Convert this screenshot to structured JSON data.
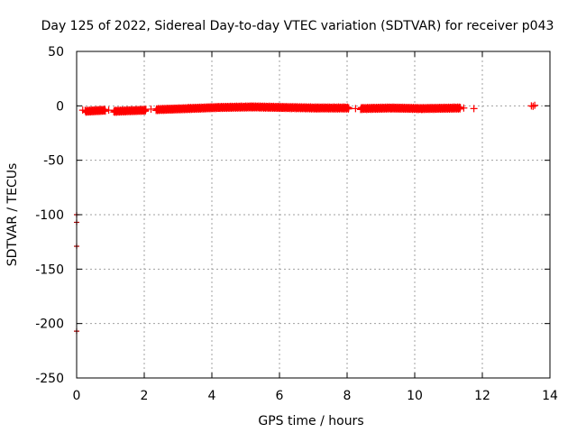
{
  "chart_data": {
    "type": "scatter",
    "title": "Day 125 of 2022, Sidereal Day-to-day VTEC variation (SDTVAR) for receiver p043",
    "xlabel": "GPS time / hours",
    "ylabel": "SDTVAR / TECUs",
    "xlim": [
      0,
      14
    ],
    "ylim": [
      -250,
      50
    ],
    "xticks": [
      0,
      2,
      4,
      6,
      8,
      10,
      12,
      14
    ],
    "yticks": [
      -250,
      -200,
      -150,
      -100,
      -50,
      0,
      50
    ],
    "grid": true,
    "marker": "plus",
    "series_color": "#ff0000",
    "outlier_color": "#aa0000",
    "segments": [
      {
        "x_start": 0.25,
        "x_end": 0.85,
        "y_start": -5,
        "y_end": -4
      },
      {
        "x_start": 1.1,
        "x_end": 2.05,
        "y_start": -5,
        "y_end": -4
      },
      {
        "x_start": 2.35,
        "x_end": 3.3,
        "y_start": -3.5,
        "y_end": -2.5
      },
      {
        "x_start": 3.3,
        "x_end": 4.2,
        "y_start": -2.5,
        "y_end": -1.5
      },
      {
        "x_start": 4.2,
        "x_end": 5.2,
        "y_start": -1.5,
        "y_end": -1
      },
      {
        "x_start": 5.2,
        "x_end": 6.1,
        "y_start": -1,
        "y_end": -1.5
      },
      {
        "x_start": 6.1,
        "x_end": 7.1,
        "y_start": -1.5,
        "y_end": -2
      },
      {
        "x_start": 7.1,
        "x_end": 8.05,
        "y_start": -2,
        "y_end": -2
      },
      {
        "x_start": 8.4,
        "x_end": 9.3,
        "y_start": -2.5,
        "y_end": -2
      },
      {
        "x_start": 9.3,
        "x_end": 10.2,
        "y_start": -2,
        "y_end": -2.5
      },
      {
        "x_start": 10.2,
        "x_end": 11.35,
        "y_start": -2.5,
        "y_end": -2
      }
    ],
    "isolated_points": [
      {
        "x": 0.18,
        "y": -4
      },
      {
        "x": 0.95,
        "y": -4
      },
      {
        "x": 2.2,
        "y": -3
      },
      {
        "x": 8.25,
        "y": -2.5
      },
      {
        "x": 11.45,
        "y": -2
      },
      {
        "x": 11.75,
        "y": -2.5
      },
      {
        "x": 13.45,
        "y": 0
      },
      {
        "x": 13.5,
        "y": -0.5
      },
      {
        "x": 13.55,
        "y": 0.5
      }
    ],
    "outliers": [
      {
        "x": 0.0,
        "y": -100
      },
      {
        "x": 0.0,
        "y": -107
      },
      {
        "x": 0.0,
        "y": -129
      },
      {
        "x": 0.0,
        "y": -207
      }
    ]
  }
}
